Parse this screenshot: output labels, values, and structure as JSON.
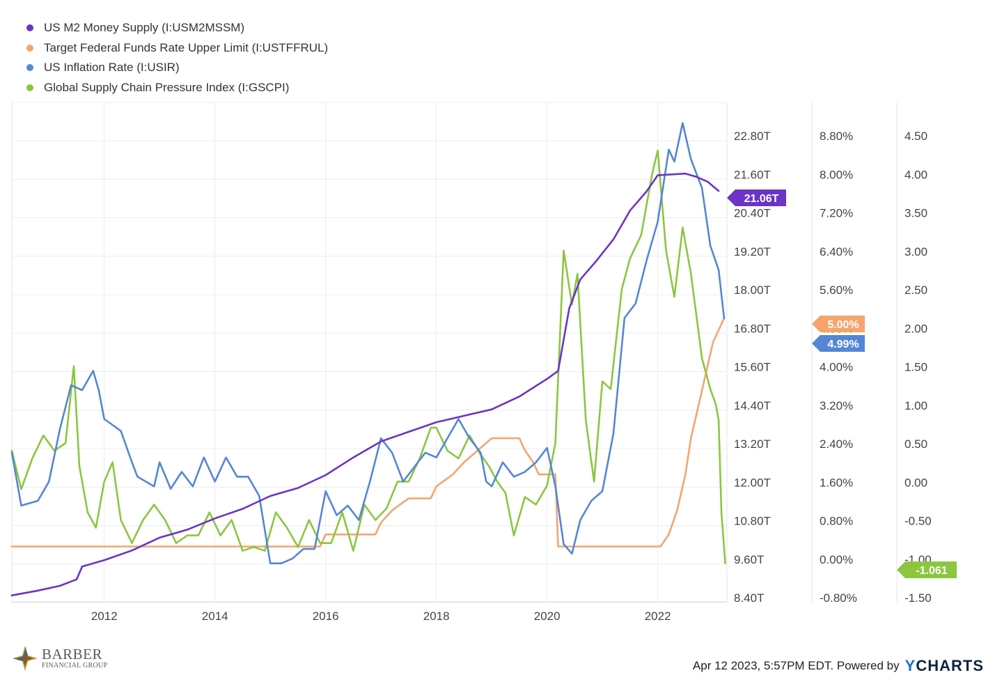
{
  "legend": [
    {
      "label": "US M2 Money Supply (I:USM2MSSM)",
      "color": "#6b34c4"
    },
    {
      "label": "Target Federal Funds Rate Upper Limit (I:USTFFRUL)",
      "color": "#f5a46e"
    },
    {
      "label": "US Inflation Rate (I:USIR)",
      "color": "#5486d6"
    },
    {
      "label": "Global Supply Chain Pressure Index (I:GSCPI)",
      "color": "#8cc63f"
    }
  ],
  "footer": {
    "timestamp": "Apr 12 2023, 5:57PM EDT.  Powered by",
    "logo_y": "Y",
    "logo_rest": "CHARTS"
  },
  "brand": {
    "name": "BARBER",
    "sub": "FINANCIAL GROUP"
  },
  "chart_data": {
    "type": "line",
    "x_ticks": [
      "2012",
      "2014",
      "2016",
      "2018",
      "2020",
      "2022"
    ],
    "axes": {
      "m2": {
        "ticks": [
          "22.80T",
          "21.60T",
          "20.40T",
          "19.20T",
          "18.00T",
          "16.80T",
          "15.60T",
          "14.40T",
          "13.20T",
          "12.00T",
          "10.80T",
          "9.60T",
          "8.40T"
        ],
        "range": [
          8.4,
          23.2
        ],
        "unit": "T"
      },
      "percent": {
        "ticks": [
          "8.80%",
          "8.00%",
          "7.20%",
          "6.40%",
          "5.60%",
          "4.80%",
          "4.00%",
          "3.20%",
          "2.40%",
          "1.60%",
          "0.80%",
          "0.00%",
          "-0.80%"
        ],
        "range": [
          -0.8,
          9.07
        ]
      },
      "gscpi": {
        "ticks": [
          "4.50",
          "4.00",
          "3.50",
          "3.00",
          "2.50",
          "2.00",
          "1.50",
          "1.00",
          "0.50",
          "0.00",
          "-0.50",
          "-1.00",
          "-1.50"
        ],
        "range": [
          -1.5,
          4.67
        ]
      }
    },
    "end_labels": [
      {
        "series": "US M2 Money Supply (I:USM2MSSM)",
        "text": "21.06T",
        "color": "#6b34c4"
      },
      {
        "series": "Target Federal Funds Rate Upper Limit (I:USTFFRUL)",
        "text": "5.00%",
        "color": "#f5a46e"
      },
      {
        "series": "US Inflation Rate (I:USIR)",
        "text": "4.99%",
        "color": "#5486d6"
      },
      {
        "series": "Global Supply Chain Pressure Index (I:GSCPI)",
        "text": "-1.061",
        "color": "#8cc63f"
      }
    ],
    "series": [
      {
        "name": "US M2 Money Supply (I:USM2MSSM)",
        "axis": "m2",
        "color": "#6b34c4",
        "points": [
          [
            2010.33,
            8.45
          ],
          [
            2010.8,
            8.6
          ],
          [
            2011.2,
            8.75
          ],
          [
            2011.5,
            8.95
          ],
          [
            2011.6,
            9.35
          ],
          [
            2012.0,
            9.55
          ],
          [
            2012.5,
            9.85
          ],
          [
            2013.0,
            10.25
          ],
          [
            2013.5,
            10.5
          ],
          [
            2014.0,
            10.85
          ],
          [
            2014.5,
            11.15
          ],
          [
            2015.0,
            11.55
          ],
          [
            2015.5,
            11.8
          ],
          [
            2016.0,
            12.2
          ],
          [
            2016.5,
            12.75
          ],
          [
            2017.0,
            13.25
          ],
          [
            2017.5,
            13.55
          ],
          [
            2018.0,
            13.85
          ],
          [
            2018.5,
            14.05
          ],
          [
            2019.0,
            14.25
          ],
          [
            2019.5,
            14.65
          ],
          [
            2020.0,
            15.2
          ],
          [
            2020.2,
            15.45
          ],
          [
            2020.4,
            17.4
          ],
          [
            2020.6,
            18.3
          ],
          [
            2020.9,
            18.9
          ],
          [
            2021.2,
            19.55
          ],
          [
            2021.5,
            20.45
          ],
          [
            2021.8,
            21.05
          ],
          [
            2022.0,
            21.55
          ],
          [
            2022.5,
            21.6
          ],
          [
            2022.7,
            21.5
          ],
          [
            2022.9,
            21.35
          ],
          [
            2023.1,
            21.06
          ]
        ]
      },
      {
        "name": "Target Federal Funds Rate Upper Limit (I:USTFFRUL)",
        "axis": "percent",
        "color": "#f5a46e",
        "points": [
          [
            2010.33,
            0.25
          ],
          [
            2015.9,
            0.25
          ],
          [
            2016.0,
            0.5
          ],
          [
            2016.9,
            0.5
          ],
          [
            2017.0,
            0.75
          ],
          [
            2017.2,
            1.0
          ],
          [
            2017.5,
            1.25
          ],
          [
            2017.9,
            1.25
          ],
          [
            2018.0,
            1.5
          ],
          [
            2018.3,
            1.75
          ],
          [
            2018.5,
            2.0
          ],
          [
            2018.75,
            2.25
          ],
          [
            2019.0,
            2.5
          ],
          [
            2019.5,
            2.5
          ],
          [
            2019.6,
            2.25
          ],
          [
            2019.75,
            2.0
          ],
          [
            2019.85,
            1.75
          ],
          [
            2020.15,
            1.75
          ],
          [
            2020.2,
            0.25
          ],
          [
            2022.05,
            0.25
          ],
          [
            2022.2,
            0.5
          ],
          [
            2022.35,
            1.0
          ],
          [
            2022.5,
            1.75
          ],
          [
            2022.6,
            2.5
          ],
          [
            2022.75,
            3.25
          ],
          [
            2022.9,
            4.0
          ],
          [
            2023.0,
            4.5
          ],
          [
            2023.1,
            4.75
          ],
          [
            2023.2,
            5.0
          ]
        ]
      },
      {
        "name": "US Inflation Rate (I:USIR)",
        "axis": "percent",
        "color": "#5486d6",
        "points": [
          [
            2010.33,
            2.2
          ],
          [
            2010.5,
            1.1
          ],
          [
            2010.8,
            1.2
          ],
          [
            2011.0,
            1.6
          ],
          [
            2011.2,
            2.7
          ],
          [
            2011.4,
            3.6
          ],
          [
            2011.6,
            3.5
          ],
          [
            2011.8,
            3.9
          ],
          [
            2011.9,
            3.5
          ],
          [
            2012.0,
            2.9
          ],
          [
            2012.3,
            2.65
          ],
          [
            2012.5,
            2.0
          ],
          [
            2012.6,
            1.7
          ],
          [
            2012.9,
            1.5
          ],
          [
            2013.0,
            2.0
          ],
          [
            2013.2,
            1.45
          ],
          [
            2013.4,
            1.8
          ],
          [
            2013.6,
            1.5
          ],
          [
            2013.8,
            2.1
          ],
          [
            2014.0,
            1.6
          ],
          [
            2014.2,
            2.1
          ],
          [
            2014.4,
            1.7
          ],
          [
            2014.6,
            1.7
          ],
          [
            2014.8,
            1.3
          ],
          [
            2015.0,
            -0.1
          ],
          [
            2015.2,
            -0.1
          ],
          [
            2015.4,
            0.0
          ],
          [
            2015.6,
            0.2
          ],
          [
            2015.8,
            0.2
          ],
          [
            2016.0,
            1.4
          ],
          [
            2016.2,
            0.9
          ],
          [
            2016.4,
            1.1
          ],
          [
            2016.6,
            0.8
          ],
          [
            2016.8,
            1.6
          ],
          [
            2017.0,
            2.5
          ],
          [
            2017.2,
            2.2
          ],
          [
            2017.4,
            1.6
          ],
          [
            2017.6,
            1.9
          ],
          [
            2017.8,
            2.2
          ],
          [
            2018.0,
            2.1
          ],
          [
            2018.2,
            2.5
          ],
          [
            2018.4,
            2.9
          ],
          [
            2018.6,
            2.5
          ],
          [
            2018.8,
            2.2
          ],
          [
            2018.9,
            1.6
          ],
          [
            2019.0,
            1.5
          ],
          [
            2019.2,
            2.0
          ],
          [
            2019.4,
            1.7
          ],
          [
            2019.6,
            1.8
          ],
          [
            2019.8,
            2.0
          ],
          [
            2020.0,
            2.3
          ],
          [
            2020.15,
            1.5
          ],
          [
            2020.3,
            0.3
          ],
          [
            2020.45,
            0.1
          ],
          [
            2020.6,
            0.8
          ],
          [
            2020.8,
            1.2
          ],
          [
            2021.0,
            1.4
          ],
          [
            2021.2,
            2.6
          ],
          [
            2021.4,
            5.0
          ],
          [
            2021.6,
            5.3
          ],
          [
            2021.8,
            6.2
          ],
          [
            2022.0,
            7.0
          ],
          [
            2022.2,
            8.5
          ],
          [
            2022.3,
            8.25
          ],
          [
            2022.45,
            9.05
          ],
          [
            2022.6,
            8.3
          ],
          [
            2022.8,
            7.7
          ],
          [
            2022.95,
            6.5
          ],
          [
            2023.1,
            6.0
          ],
          [
            2023.2,
            4.99
          ]
        ]
      },
      {
        "name": "Global Supply Chain Pressure Index (I:GSCPI)",
        "axis": "gscpi",
        "color": "#8cc63f",
        "points": [
          [
            2010.33,
            0.4
          ],
          [
            2010.5,
            -0.1
          ],
          [
            2010.7,
            0.3
          ],
          [
            2010.9,
            0.6
          ],
          [
            2011.1,
            0.4
          ],
          [
            2011.3,
            0.5
          ],
          [
            2011.45,
            1.5
          ],
          [
            2011.55,
            0.2
          ],
          [
            2011.7,
            -0.4
          ],
          [
            2011.85,
            -0.6
          ],
          [
            2012.0,
            0.0
          ],
          [
            2012.15,
            0.25
          ],
          [
            2012.3,
            -0.5
          ],
          [
            2012.5,
            -0.8
          ],
          [
            2012.7,
            -0.5
          ],
          [
            2012.9,
            -0.3
          ],
          [
            2013.1,
            -0.5
          ],
          [
            2013.3,
            -0.8
          ],
          [
            2013.5,
            -0.7
          ],
          [
            2013.7,
            -0.7
          ],
          [
            2013.9,
            -0.4
          ],
          [
            2014.1,
            -0.7
          ],
          [
            2014.3,
            -0.5
          ],
          [
            2014.5,
            -0.9
          ],
          [
            2014.7,
            -0.85
          ],
          [
            2014.9,
            -0.9
          ],
          [
            2015.1,
            -0.4
          ],
          [
            2015.3,
            -0.6
          ],
          [
            2015.5,
            -0.85
          ],
          [
            2015.7,
            -0.5
          ],
          [
            2015.9,
            -0.8
          ],
          [
            2016.1,
            -0.8
          ],
          [
            2016.3,
            -0.4
          ],
          [
            2016.5,
            -0.9
          ],
          [
            2016.7,
            -0.3
          ],
          [
            2016.9,
            -0.5
          ],
          [
            2017.1,
            -0.35
          ],
          [
            2017.3,
            0.0
          ],
          [
            2017.5,
            0.0
          ],
          [
            2017.7,
            0.3
          ],
          [
            2017.9,
            0.7
          ],
          [
            2018.0,
            0.7
          ],
          [
            2018.2,
            0.4
          ],
          [
            2018.4,
            0.3
          ],
          [
            2018.6,
            0.6
          ],
          [
            2018.8,
            0.35
          ],
          [
            2018.95,
            0.2
          ],
          [
            2019.1,
            0.0
          ],
          [
            2019.25,
            -0.15
          ],
          [
            2019.4,
            -0.7
          ],
          [
            2019.6,
            -0.2
          ],
          [
            2019.8,
            -0.3
          ],
          [
            2020.0,
            -0.05
          ],
          [
            2020.15,
            0.5
          ],
          [
            2020.3,
            3.0
          ],
          [
            2020.45,
            2.3
          ],
          [
            2020.55,
            2.7
          ],
          [
            2020.7,
            0.8
          ],
          [
            2020.85,
            0.0
          ],
          [
            2021.0,
            1.3
          ],
          [
            2021.15,
            1.2
          ],
          [
            2021.35,
            2.5
          ],
          [
            2021.5,
            2.9
          ],
          [
            2021.7,
            3.2
          ],
          [
            2021.9,
            4.0
          ],
          [
            2022.0,
            4.3
          ],
          [
            2022.15,
            3.0
          ],
          [
            2022.3,
            2.4
          ],
          [
            2022.45,
            3.3
          ],
          [
            2022.6,
            2.7
          ],
          [
            2022.8,
            1.6
          ],
          [
            2022.95,
            1.2
          ],
          [
            2023.05,
            1.0
          ],
          [
            2023.1,
            0.8
          ],
          [
            2023.15,
            -0.4
          ],
          [
            2023.22,
            -1.061
          ]
        ]
      }
    ]
  }
}
